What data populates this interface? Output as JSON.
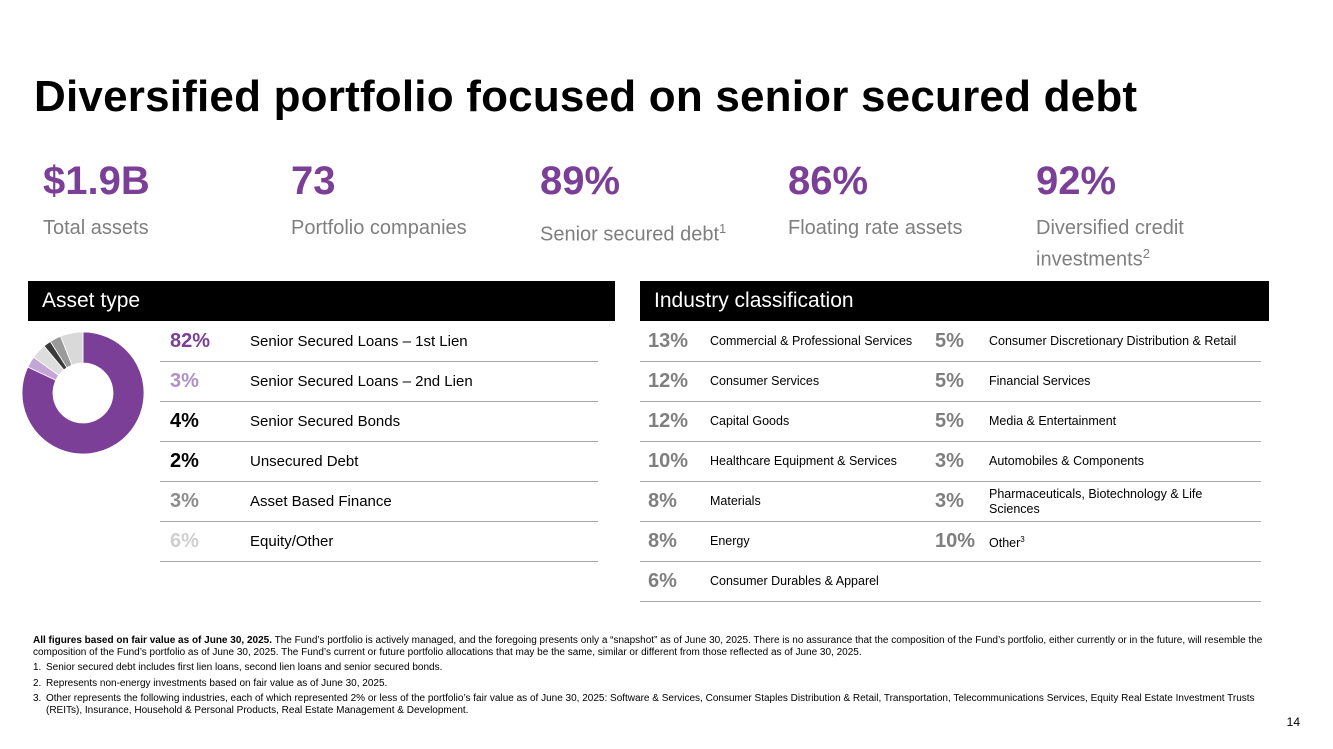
{
  "title": "Diversified portfolio focused on senior secured debt",
  "stats": [
    {
      "value": "$1.9B",
      "label": "Total assets",
      "sup": ""
    },
    {
      "value": "73",
      "label": "Portfolio companies",
      "sup": ""
    },
    {
      "value": "89%",
      "label": "Senior secured debt",
      "sup": "1"
    },
    {
      "value": "86%",
      "label": "Floating rate assets",
      "sup": ""
    },
    {
      "value": "92%",
      "label": "Diversified credit investments",
      "sup": "2"
    }
  ],
  "asset_type": {
    "header": "Asset type",
    "items": [
      {
        "pct": "82%",
        "name": "Senior Secured Loans – 1st Lien",
        "color": "#7b3f98"
      },
      {
        "pct": "3%",
        "name": "Senior Secured Loans – 2nd Lien",
        "color": "#b08fc7"
      },
      {
        "pct": "4%",
        "name": "Senior Secured Bonds",
        "color": "#000000"
      },
      {
        "pct": "2%",
        "name": "Unsecured Debt",
        "color": "#000000"
      },
      {
        "pct": "3%",
        "name": "Asset Based Finance",
        "color": "#8c8c8c"
      },
      {
        "pct": "6%",
        "name": "Equity/Other",
        "color": "#cfcfcf"
      }
    ]
  },
  "chart_data": {
    "type": "pie",
    "title": "Asset type",
    "categories": [
      "Senior Secured Loans – 1st Lien",
      "Senior Secured Loans – 2nd Lien",
      "Senior Secured Bonds",
      "Unsecured Debt",
      "Asset Based Finance",
      "Equity/Other"
    ],
    "values": [
      82,
      3,
      4,
      2,
      3,
      6
    ],
    "colors": [
      "#7b3f98",
      "#c3a6d6",
      "#dddddd",
      "#3a3a3a",
      "#9a9a9a",
      "#d9d9d9"
    ]
  },
  "industry": {
    "header": "Industry classification",
    "left": [
      {
        "pct": "13%",
        "name": "Commercial & Professional Services"
      },
      {
        "pct": "12%",
        "name": "Consumer Services"
      },
      {
        "pct": "12%",
        "name": "Capital Goods"
      },
      {
        "pct": "10%",
        "name": "Healthcare Equipment & Services"
      },
      {
        "pct": "8%",
        "name": "Materials"
      },
      {
        "pct": "8%",
        "name": "Energy"
      },
      {
        "pct": "6%",
        "name": "Consumer Durables & Apparel"
      }
    ],
    "right": [
      {
        "pct": "5%",
        "name": "Consumer Discretionary Distribution & Retail",
        "sup": ""
      },
      {
        "pct": "5%",
        "name": "Financial Services",
        "sup": ""
      },
      {
        "pct": "5%",
        "name": "Media & Entertainment",
        "sup": ""
      },
      {
        "pct": "3%",
        "name": "Automobiles & Components",
        "sup": ""
      },
      {
        "pct": "3%",
        "name": "Pharmaceuticals, Biotechnology & Life Sciences",
        "sup": ""
      },
      {
        "pct": "10%",
        "name": "Other",
        "sup": "3"
      }
    ]
  },
  "footnotes": {
    "lead_bold": "All figures based on fair value as of June 30, 2025.",
    "lead_text": " The Fund’s portfolio is actively managed, and the foregoing presents only a “snapshot” as of June 30, 2025. There is no assurance that the composition of the Fund’s portfolio, either currently or in the future, will resemble the composition of the Fund’s portfolio as of June 30, 2025. The Fund’s current or future portfolio allocations that may be the same, similar or different from those reflected as of June 30, 2025.",
    "notes": [
      {
        "n": "1.",
        "text": "Senior secured debt includes first lien loans, second lien loans and senior secured bonds."
      },
      {
        "n": "2.",
        "text": "Represents non-energy investments based on fair value as of June 30, 2025."
      },
      {
        "n": "3.",
        "text": "Other represents the following industries, each of which represented 2% or less of the portfolio’s fair value as of June 30, 2025: Software & Services, Consumer Staples Distribution & Retail, Transportation, Telecommunications Services, Equity Real Estate Investment Trusts (REITs), Insurance, Household & Personal Products, Real Estate Management & Development."
      }
    ]
  },
  "page_number": "14"
}
